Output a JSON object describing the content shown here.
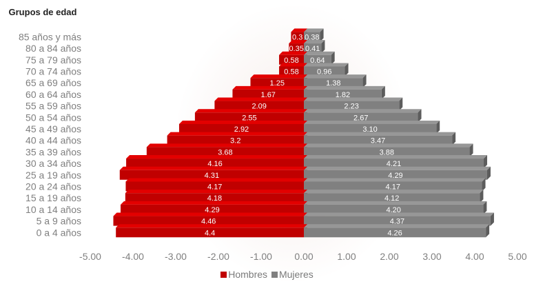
{
  "chart_data": {
    "type": "bar",
    "orientation": "horizontal",
    "stacked": "diverging",
    "y_axis_title": "Grupos de edad",
    "categories": [
      "85 años y más",
      "80 a 84 años",
      "75 a 79 años",
      "70 a 74 años",
      "65 a 69 años",
      "60 a 64 años",
      "55 a 59 años",
      "50 a 54 años",
      "45 a 49 años",
      "40 a 44 años",
      "35 a 39 años",
      "30 a 34 años",
      "25 a 19 años",
      "20 a 24 años",
      "15 a 19 años",
      "10 a 14 años",
      "5 a 9 años",
      "0 a 4 años"
    ],
    "series": [
      {
        "name": "Hombres",
        "color": "#c00000",
        "values": [
          -0.3,
          -0.35,
          -0.58,
          -0.58,
          -1.25,
          -1.67,
          -2.09,
          -2.55,
          -2.92,
          -3.2,
          -3.68,
          -4.16,
          -4.31,
          -4.17,
          -4.18,
          -4.29,
          -4.46,
          -4.4
        ],
        "labels": [
          "0.3",
          "0.35",
          "0.58",
          "0.58",
          "1.25",
          "1.67",
          "2.09",
          "2.55",
          "2.92",
          "3.2",
          "3.68",
          "4.16",
          "4.31",
          "4.17",
          "4.18",
          "4.29",
          "4.46",
          "4.4"
        ]
      },
      {
        "name": "Mujeres",
        "color": "#808080",
        "values": [
          0.38,
          0.41,
          0.64,
          0.96,
          1.38,
          1.82,
          2.23,
          2.67,
          3.1,
          3.47,
          3.88,
          4.21,
          4.29,
          4.17,
          4.12,
          4.2,
          4.37,
          4.26
        ],
        "labels": [
          "0.38",
          "0.41",
          "0.64",
          "0.96",
          "1.38",
          "1.82",
          "2.23",
          "2.67",
          "3.10",
          "3.47",
          "3.88",
          "4.21",
          "4.29",
          "4.17",
          "4.12",
          "4.20",
          "4.37",
          "4.26"
        ]
      }
    ],
    "xlim": [
      -5,
      5
    ],
    "x_ticks": [
      -5,
      -4,
      -3,
      -2,
      -1,
      0,
      1,
      2,
      3,
      4,
      5
    ],
    "x_tick_labels": [
      "-5.00",
      "-4.00",
      "-3.00",
      "-2.00",
      "-1.00",
      "0.00",
      "1.00",
      "2.00",
      "3.00",
      "4.00",
      "5.00"
    ],
    "grid": false,
    "legend_position": "bottom-center"
  }
}
